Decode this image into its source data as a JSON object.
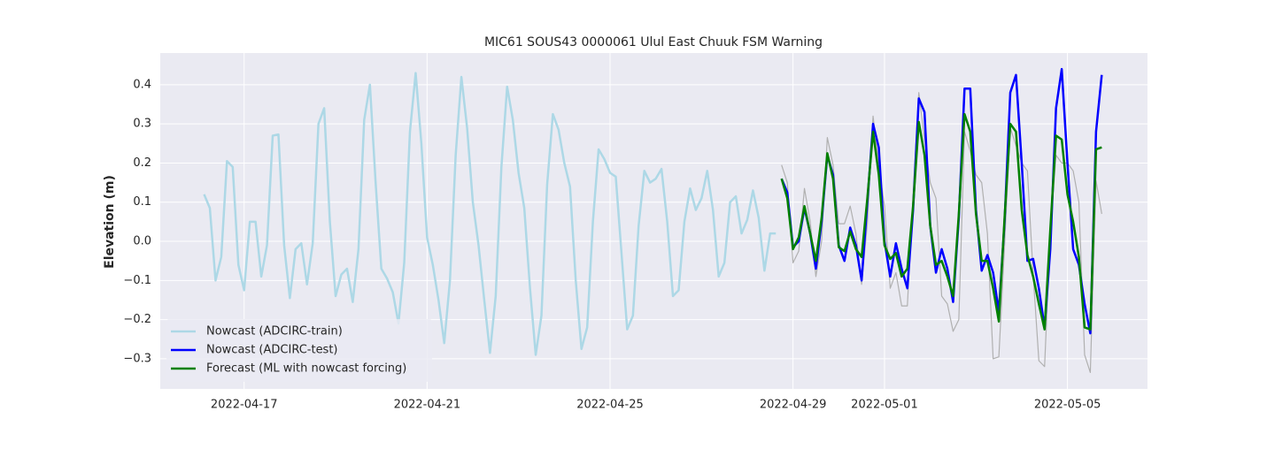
{
  "chart_data": {
    "type": "line",
    "title": "MIC61 SOUS43 0000061 Ulul East Chuuk FSM Warning",
    "ylabel": "Elevation (m)",
    "grid": true,
    "legend": "lower left",
    "xlim": [
      "2022-04-15 04:00",
      "2022-05-06 18:00"
    ],
    "ylim": [
      -0.377,
      0.481
    ],
    "xticks": [
      "2022-04-17",
      "2022-04-21",
      "2022-04-25",
      "2022-04-29",
      "2022-05-01",
      "2022-05-05"
    ],
    "yticks": [
      {
        "value": -0.3,
        "label": "−0.3"
      },
      {
        "value": -0.2,
        "label": "−0.2"
      },
      {
        "value": -0.1,
        "label": "−0.1"
      },
      {
        "value": 0,
        "label": "0.0"
      },
      0.1,
      0.2,
      0.3,
      0.4
    ],
    "x": [
      "2022-04-28 18:00",
      "2022-04-28 21:00",
      "2022-04-29 00:00",
      "2022-04-29 03:00",
      "2022-04-29 06:00",
      "2022-04-29 09:00",
      "2022-04-29 12:00",
      "2022-04-29 15:00",
      "2022-04-29 18:00",
      "2022-04-29 21:00",
      "2022-04-30 00:00",
      "2022-04-30 03:00",
      "2022-04-30 06:00",
      "2022-04-30 09:00",
      "2022-04-30 12:00",
      "2022-04-30 15:00",
      "2022-04-30 18:00",
      "2022-04-30 21:00",
      "2022-05-01 00:00",
      "2022-05-01 03:00",
      "2022-05-01 06:00",
      "2022-05-01 09:00",
      "2022-05-01 12:00",
      "2022-05-01 15:00",
      "2022-05-01 18:00",
      "2022-05-01 21:00",
      "2022-05-02 00:00",
      "2022-05-02 03:00",
      "2022-05-02 06:00",
      "2022-05-02 09:00",
      "2022-05-02 12:00",
      "2022-05-02 15:00",
      "2022-05-02 18:00",
      "2022-05-02 21:00",
      "2022-05-03 00:00",
      "2022-05-03 03:00",
      "2022-05-03 06:00",
      "2022-05-03 09:00",
      "2022-05-03 12:00",
      "2022-05-03 15:00",
      "2022-05-03 18:00",
      "2022-05-03 21:00",
      "2022-05-04 00:00",
      "2022-05-04 03:00",
      "2022-05-04 06:00",
      "2022-05-04 09:00",
      "2022-05-04 12:00",
      "2022-05-04 15:00",
      "2022-05-04 18:00",
      "2022-05-04 21:00",
      "2022-05-05 00:00",
      "2022-05-05 03:00",
      "2022-05-05 06:00",
      "2022-05-05 09:00",
      "2022-05-05 12:00",
      "2022-05-05 15:00",
      "2022-05-05 18:00"
    ],
    "series": [
      {
        "name": "Nowcast (ADCIRC-train)",
        "color": "#add8e6",
        "width": 2.5,
        "x": [
          "2022-04-16 03:00",
          "2022-04-16 06:00",
          "2022-04-16 09:00",
          "2022-04-16 12:00",
          "2022-04-16 15:00",
          "2022-04-16 18:00",
          "2022-04-16 21:00",
          "2022-04-17 00:00",
          "2022-04-17 03:00",
          "2022-04-17 06:00",
          "2022-04-17 09:00",
          "2022-04-17 12:00",
          "2022-04-17 15:00",
          "2022-04-17 18:00",
          "2022-04-17 21:00",
          "2022-04-18 00:00",
          "2022-04-18 03:00",
          "2022-04-18 06:00",
          "2022-04-18 09:00",
          "2022-04-18 12:00",
          "2022-04-18 15:00",
          "2022-04-18 18:00",
          "2022-04-18 21:00",
          "2022-04-19 00:00",
          "2022-04-19 03:00",
          "2022-04-19 06:00",
          "2022-04-19 09:00",
          "2022-04-19 12:00",
          "2022-04-19 15:00",
          "2022-04-19 18:00",
          "2022-04-19 21:00",
          "2022-04-20 00:00",
          "2022-04-20 03:00",
          "2022-04-20 06:00",
          "2022-04-20 09:00",
          "2022-04-20 12:00",
          "2022-04-20 15:00",
          "2022-04-20 18:00",
          "2022-04-20 21:00",
          "2022-04-21 00:00",
          "2022-04-21 03:00",
          "2022-04-21 06:00",
          "2022-04-21 09:00",
          "2022-04-21 12:00",
          "2022-04-21 15:00",
          "2022-04-21 18:00",
          "2022-04-21 21:00",
          "2022-04-22 00:00",
          "2022-04-22 03:00",
          "2022-04-22 06:00",
          "2022-04-22 09:00",
          "2022-04-22 12:00",
          "2022-04-22 15:00",
          "2022-04-22 18:00",
          "2022-04-22 21:00",
          "2022-04-23 00:00",
          "2022-04-23 03:00",
          "2022-04-23 06:00",
          "2022-04-23 09:00",
          "2022-04-23 12:00",
          "2022-04-23 15:00",
          "2022-04-23 18:00",
          "2022-04-23 21:00",
          "2022-04-24 00:00",
          "2022-04-24 03:00",
          "2022-04-24 06:00",
          "2022-04-24 09:00",
          "2022-04-24 12:00",
          "2022-04-24 15:00",
          "2022-04-24 18:00",
          "2022-04-24 21:00",
          "2022-04-25 00:00",
          "2022-04-25 03:00",
          "2022-04-25 06:00",
          "2022-04-25 09:00",
          "2022-04-25 12:00",
          "2022-04-25 15:00",
          "2022-04-25 18:00",
          "2022-04-25 21:00",
          "2022-04-26 00:00",
          "2022-04-26 03:00",
          "2022-04-26 06:00",
          "2022-04-26 09:00",
          "2022-04-26 12:00",
          "2022-04-26 15:00",
          "2022-04-26 18:00",
          "2022-04-26 21:00",
          "2022-04-27 00:00",
          "2022-04-27 03:00",
          "2022-04-27 06:00",
          "2022-04-27 09:00",
          "2022-04-27 12:00",
          "2022-04-27 15:00",
          "2022-04-27 18:00",
          "2022-04-27 21:00",
          "2022-04-28 00:00",
          "2022-04-28 03:00",
          "2022-04-28 06:00",
          "2022-04-28 09:00",
          "2022-04-28 12:00",
          "2022-04-28 15:00"
        ],
        "values": [
          0.12,
          0.085,
          -0.1,
          -0.04,
          0.205,
          0.19,
          -0.06,
          -0.125,
          0.05,
          0.05,
          -0.09,
          -0.01,
          0.27,
          0.273,
          -0.01,
          -0.145,
          -0.02,
          -0.005,
          -0.11,
          -0.005,
          0.3,
          0.34,
          0.05,
          -0.14,
          -0.085,
          -0.07,
          -0.155,
          -0.02,
          0.31,
          0.4,
          0.15,
          -0.07,
          -0.095,
          -0.13,
          -0.21,
          -0.055,
          0.28,
          0.43,
          0.25,
          0.01,
          -0.06,
          -0.15,
          -0.26,
          -0.1,
          0.22,
          0.42,
          0.29,
          0.1,
          -0.01,
          -0.15,
          -0.285,
          -0.14,
          0.19,
          0.395,
          0.31,
          0.175,
          0.085,
          -0.12,
          -0.29,
          -0.19,
          0.145,
          0.325,
          0.285,
          0.2,
          0.14,
          -0.1,
          -0.275,
          -0.22,
          0.05,
          0.235,
          0.21,
          0.175,
          0.165,
          -0.03,
          -0.225,
          -0.19,
          0.04,
          0.18,
          0.15,
          0.16,
          0.185,
          0.05,
          -0.14,
          -0.125,
          0.05,
          0.135,
          0.08,
          0.11,
          0.18,
          0.08,
          -0.09,
          -0.055,
          0.1,
          0.115,
          0.02,
          0.055,
          0.13,
          0.06,
          -0.075,
          0.02,
          0.02
        ]
      },
      {
        "color": "#b0b0b0",
        "width": 1.2,
        "values": [
          0.195,
          0.15,
          -0.055,
          -0.025,
          0.135,
          0.05,
          -0.09,
          0.0,
          0.265,
          0.195,
          0.045,
          0.045,
          0.09,
          0.02,
          -0.11,
          0.045,
          0.32,
          0.195,
          0.09,
          -0.12,
          -0.08,
          -0.165,
          -0.165,
          0.12,
          0.38,
          0.26,
          0.15,
          0.11,
          -0.14,
          -0.16,
          -0.23,
          -0.2,
          0.28,
          0.23,
          0.17,
          0.15,
          0.02,
          -0.3,
          -0.295,
          -0.01,
          0.29,
          0.245,
          0.2,
          0.18,
          -0.085,
          -0.305,
          -0.32,
          0.02,
          0.22,
          0.2,
          0.2,
          0.18,
          0.1,
          -0.29,
          -0.335,
          0.155,
          0.07
        ]
      },
      {
        "name": "Nowcast (ADCIRC-test)",
        "color": "#0000ff",
        "width": 2.5,
        "values": [
          0.16,
          0.125,
          -0.015,
          0.0,
          0.085,
          0.02,
          -0.07,
          0.05,
          0.22,
          0.17,
          -0.01,
          -0.05,
          0.035,
          -0.01,
          -0.1,
          0.1,
          0.3,
          0.24,
          0.0,
          -0.09,
          -0.005,
          -0.07,
          -0.12,
          0.08,
          0.365,
          0.33,
          0.04,
          -0.08,
          -0.02,
          -0.07,
          -0.155,
          0.06,
          0.39,
          0.39,
          0.08,
          -0.075,
          -0.035,
          -0.08,
          -0.18,
          0.05,
          0.38,
          0.425,
          0.2,
          -0.05,
          -0.045,
          -0.12,
          -0.22,
          -0.02,
          0.34,
          0.44,
          0.2,
          -0.02,
          -0.06,
          -0.16,
          -0.235,
          0.28,
          0.425
        ]
      },
      {
        "name": "Forecast (ML with nowcast forcing)",
        "color": "#008000",
        "width": 2.5,
        "values": [
          0.16,
          0.11,
          -0.02,
          0.01,
          0.09,
          0.02,
          -0.05,
          0.06,
          0.225,
          0.16,
          -0.015,
          -0.025,
          0.025,
          -0.02,
          -0.04,
          0.11,
          0.28,
          0.17,
          -0.01,
          -0.045,
          -0.03,
          -0.09,
          -0.07,
          0.09,
          0.305,
          0.22,
          0.04,
          -0.06,
          -0.05,
          -0.09,
          -0.14,
          0.07,
          0.325,
          0.28,
          0.07,
          -0.05,
          -0.05,
          -0.12,
          -0.205,
          0.06,
          0.3,
          0.28,
          0.08,
          -0.035,
          -0.09,
          -0.16,
          -0.225,
          0.03,
          0.27,
          0.26,
          0.12,
          0.05,
          -0.04,
          -0.22,
          -0.225,
          0.235,
          0.24
        ]
      }
    ]
  }
}
